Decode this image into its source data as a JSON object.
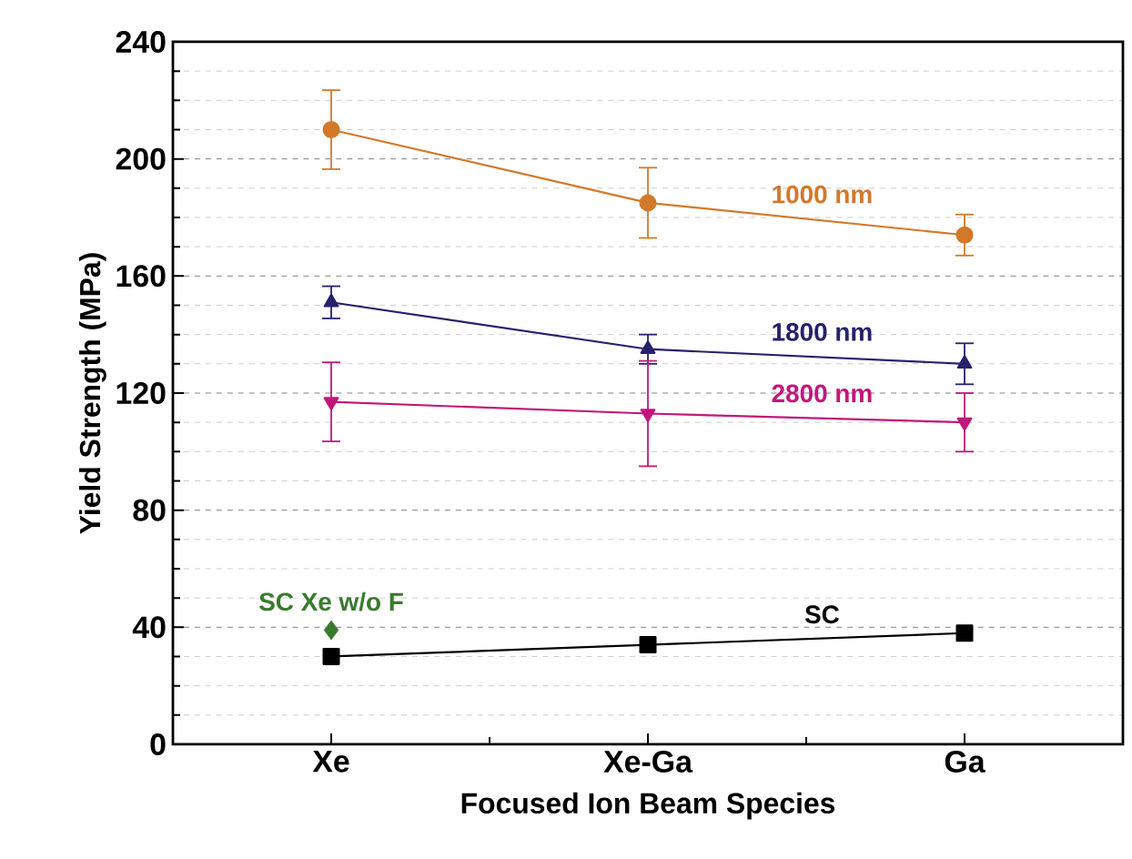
{
  "chart_data": {
    "type": "line",
    "xlabel": "Focused Ion Beam Species",
    "ylabel": "Yield Strength (MPa)",
    "categories": [
      "Xe",
      "Xe-Ga",
      "Ga"
    ],
    "series": [
      {
        "name": "1000 nm",
        "color": "#d2792a",
        "marker": "circle",
        "values": [
          210,
          185,
          174
        ],
        "errors": [
          13.5,
          12,
          7
        ]
      },
      {
        "name": "1800 nm",
        "color": "#25226a",
        "marker": "triangle",
        "values": [
          151,
          135,
          130
        ],
        "errors": [
          5.5,
          5,
          7
        ]
      },
      {
        "name": "2800 nm",
        "color": "#c0187a",
        "marker": "triangle-down",
        "values": [
          117,
          113,
          110
        ],
        "errors": [
          13.5,
          18,
          10
        ]
      },
      {
        "name": "SC",
        "color": "#000000",
        "marker": "square",
        "values": [
          30,
          34,
          38
        ]
      },
      {
        "name": "SC Xe w/o F",
        "type": "scatter",
        "color": "#3a7a2e",
        "marker": "diamond",
        "x": [
          "Xe"
        ],
        "values": [
          39
        ]
      }
    ],
    "ylim": [
      0,
      240
    ],
    "yticks": [
      0,
      {
        "value": 10,
        "label": null
      },
      {
        "value": 20,
        "label": null
      },
      {
        "value": 30,
        "label": null
      },
      40,
      {
        "value": 50,
        "label": null
      },
      {
        "value": 60,
        "label": null
      },
      {
        "value": 70,
        "label": null
      },
      80,
      {
        "value": 90,
        "label": null
      },
      {
        "value": 100,
        "label": null
      },
      {
        "value": 110,
        "label": null
      },
      120,
      {
        "value": 130,
        "label": null
      },
      {
        "value": 140,
        "label": null
      },
      {
        "value": 150,
        "label": null
      },
      160,
      {
        "value": 170,
        "label": null
      },
      {
        "value": 180,
        "label": null
      },
      {
        "value": 190,
        "label": null
      },
      200,
      {
        "value": 210,
        "label": null
      },
      {
        "value": 220,
        "label": null
      },
      {
        "value": 230,
        "label": null
      },
      240
    ],
    "grid": "y",
    "line_style": "solid"
  }
}
